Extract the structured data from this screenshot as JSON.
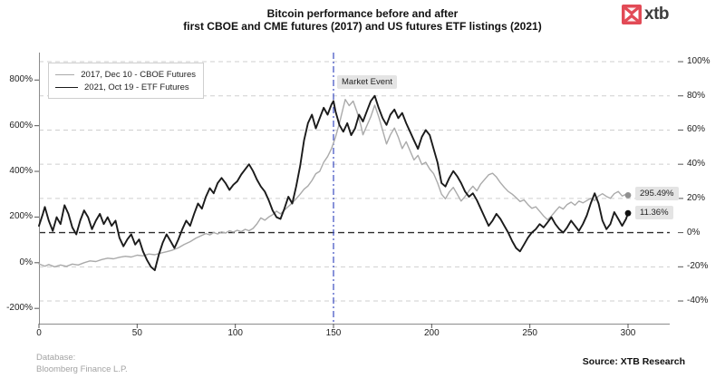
{
  "header": {
    "title_line1": "Bitcoin performance before and after",
    "title_line2": "first CBOE and CME futures (2017) and US futures ETF listings (2021)",
    "logo_text": "xtb",
    "logo_color": "#e24a56"
  },
  "footer": {
    "database_label": "Database:",
    "database_value": "Bloomberg Finance L.P.",
    "source": "Source: XTB Research"
  },
  "chart_data": {
    "type": "line",
    "title": "Bitcoin performance before and after first CBOE and CME futures (2017) and US futures ETF listings (2021)",
    "legend_position": "top-left",
    "grid": true,
    "x_axis": {
      "range": [
        0,
        300
      ],
      "ticks": [
        {
          "value": 0,
          "label": "0"
        },
        {
          "value": 50,
          "label": "50"
        },
        {
          "value": 100,
          "label": "100"
        },
        {
          "value": 150,
          "label": "150"
        },
        {
          "value": 200,
          "label": "200"
        },
        {
          "value": 250,
          "label": "250"
        },
        {
          "value": 300,
          "label": "300"
        }
      ]
    },
    "left_axis": {
      "range": [
        -300,
        900
      ],
      "ticks": [
        {
          "value": 800,
          "label": "800%"
        },
        {
          "value": 600,
          "label": "600%"
        },
        {
          "value": 400,
          "label": "400%"
        },
        {
          "value": 200,
          "label": "200%"
        },
        {
          "value": 0,
          "label": "0%"
        },
        {
          "value": -200,
          "label": "-200%"
        }
      ]
    },
    "right_axis": {
      "range": [
        -55,
        105
      ],
      "ticks": [
        {
          "value": 100,
          "label": "100%"
        },
        {
          "value": 80,
          "label": "80%"
        },
        {
          "value": 60,
          "label": "60%"
        },
        {
          "value": 40,
          "label": "40%"
        },
        {
          "value": 20,
          "label": "20%"
        },
        {
          "value": 0,
          "label": "0%"
        },
        {
          "value": -20,
          "label": "-20%"
        },
        {
          "value": -40,
          "label": "-40%"
        }
      ]
    },
    "zero_line": {
      "axis": "right",
      "value": 0,
      "color": "#2e2e2e"
    },
    "event_line": {
      "x": 150,
      "label": "Market Event",
      "color": "#3b4cc0"
    },
    "series": [
      {
        "name": "2017, Dec 10 - CBOE Futures",
        "axis": "left",
        "color": "#aaaaaa",
        "dot_color": "#909090",
        "width": 1.4,
        "end_label": "295.49%",
        "end_value": 295.49,
        "points": [
          [
            0,
            -5
          ],
          [
            3,
            -15
          ],
          [
            5,
            -8
          ],
          [
            8,
            -18
          ],
          [
            11,
            -10
          ],
          [
            14,
            -16
          ],
          [
            17,
            -6
          ],
          [
            20,
            -10
          ],
          [
            23,
            0
          ],
          [
            26,
            8
          ],
          [
            29,
            5
          ],
          [
            32,
            14
          ],
          [
            35,
            20
          ],
          [
            38,
            17
          ],
          [
            41,
            24
          ],
          [
            44,
            28
          ],
          [
            47,
            25
          ],
          [
            50,
            33
          ],
          [
            53,
            30
          ],
          [
            56,
            38
          ],
          [
            59,
            35
          ],
          [
            62,
            42
          ],
          [
            65,
            48
          ],
          [
            68,
            55
          ],
          [
            71,
            65
          ],
          [
            74,
            80
          ],
          [
            77,
            92
          ],
          [
            80,
            108
          ],
          [
            83,
            120
          ],
          [
            85,
            128
          ],
          [
            87,
            122
          ],
          [
            89,
            132
          ],
          [
            91,
            126
          ],
          [
            93,
            135
          ],
          [
            95,
            130
          ],
          [
            97,
            140
          ],
          [
            99,
            134
          ],
          [
            101,
            142
          ],
          [
            103,
            136
          ],
          [
            105,
            146
          ],
          [
            107,
            140
          ],
          [
            109,
            150
          ],
          [
            111,
            170
          ],
          [
            113,
            196
          ],
          [
            115,
            186
          ],
          [
            117,
            200
          ],
          [
            119,
            210
          ],
          [
            121,
            226
          ],
          [
            123,
            214
          ],
          [
            125,
            230
          ],
          [
            127,
            246
          ],
          [
            129,
            262
          ],
          [
            131,
            280
          ],
          [
            133,
            300
          ],
          [
            135,
            322
          ],
          [
            137,
            336
          ],
          [
            139,
            360
          ],
          [
            141,
            390
          ],
          [
            143,
            400
          ],
          [
            145,
            440
          ],
          [
            147,
            465
          ],
          [
            149,
            500
          ],
          [
            151,
            550
          ],
          [
            153,
            610
          ],
          [
            155,
            680
          ],
          [
            156,
            715
          ],
          [
            158,
            688
          ],
          [
            160,
            708
          ],
          [
            162,
            660
          ],
          [
            164,
            600
          ],
          [
            165,
            560
          ],
          [
            167,
            600
          ],
          [
            169,
            640
          ],
          [
            171,
            690
          ],
          [
            173,
            640
          ],
          [
            175,
            580
          ],
          [
            177,
            520
          ],
          [
            179,
            560
          ],
          [
            181,
            590
          ],
          [
            183,
            550
          ],
          [
            185,
            500
          ],
          [
            187,
            530
          ],
          [
            189,
            490
          ],
          [
            191,
            450
          ],
          [
            193,
            470
          ],
          [
            195,
            430
          ],
          [
            197,
            440
          ],
          [
            199,
            410
          ],
          [
            201,
            390
          ],
          [
            203,
            350
          ],
          [
            205,
            300
          ],
          [
            207,
            280
          ],
          [
            209,
            310
          ],
          [
            211,
            330
          ],
          [
            213,
            300
          ],
          [
            215,
            270
          ],
          [
            217,
            290
          ],
          [
            219,
            315
          ],
          [
            221,
            335
          ],
          [
            223,
            315
          ],
          [
            225,
            345
          ],
          [
            227,
            365
          ],
          [
            229,
            385
          ],
          [
            231,
            392
          ],
          [
            233,
            375
          ],
          [
            235,
            350
          ],
          [
            237,
            330
          ],
          [
            239,
            312
          ],
          [
            241,
            300
          ],
          [
            243,
            285
          ],
          [
            245,
            268
          ],
          [
            247,
            275
          ],
          [
            249,
            255
          ],
          [
            251,
            238
          ],
          [
            253,
            245
          ],
          [
            255,
            225
          ],
          [
            257,
            205
          ],
          [
            259,
            188
          ],
          [
            261,
            205
          ],
          [
            263,
            225
          ],
          [
            265,
            245
          ],
          [
            267,
            235
          ],
          [
            269,
            255
          ],
          [
            271,
            265
          ],
          [
            273,
            252
          ],
          [
            275,
            270
          ],
          [
            277,
            262
          ],
          [
            279,
            272
          ],
          [
            281,
            282
          ],
          [
            283,
            272
          ],
          [
            285,
            292
          ],
          [
            287,
            302
          ],
          [
            289,
            290
          ],
          [
            291,
            282
          ],
          [
            293,
            302
          ],
          [
            295,
            312
          ],
          [
            297,
            292
          ],
          [
            299,
            300
          ],
          [
            300,
            295.49
          ]
        ]
      },
      {
        "name": "2021, Oct 19 - ETF Futures",
        "axis": "right",
        "color": "#1b1b1b",
        "dot_color": "#111111",
        "width": 1.9,
        "end_label": "11.36%",
        "end_value": 11.36,
        "points": [
          [
            0,
            4
          ],
          [
            2,
            11
          ],
          [
            3,
            15
          ],
          [
            5,
            7
          ],
          [
            7,
            1
          ],
          [
            9,
            9
          ],
          [
            11,
            5
          ],
          [
            13,
            16
          ],
          [
            15,
            11
          ],
          [
            17,
            3
          ],
          [
            19,
            -1
          ],
          [
            21,
            7
          ],
          [
            23,
            13
          ],
          [
            25,
            9
          ],
          [
            27,
            2
          ],
          [
            29,
            7
          ],
          [
            31,
            11
          ],
          [
            33,
            5
          ],
          [
            35,
            9
          ],
          [
            37,
            4
          ],
          [
            39,
            7
          ],
          [
            41,
            -3
          ],
          [
            43,
            -8
          ],
          [
            45,
            -4
          ],
          [
            47,
            -1
          ],
          [
            49,
            -7
          ],
          [
            51,
            -4
          ],
          [
            53,
            -11
          ],
          [
            55,
            -16
          ],
          [
            57,
            -20
          ],
          [
            59,
            -22
          ],
          [
            61,
            -13
          ],
          [
            63,
            -6
          ],
          [
            65,
            -1
          ],
          [
            67,
            -5
          ],
          [
            69,
            -9
          ],
          [
            71,
            -4
          ],
          [
            73,
            2
          ],
          [
            75,
            7
          ],
          [
            77,
            4
          ],
          [
            79,
            11
          ],
          [
            81,
            17
          ],
          [
            83,
            14
          ],
          [
            85,
            21
          ],
          [
            87,
            26
          ],
          [
            89,
            23
          ],
          [
            91,
            29
          ],
          [
            93,
            32
          ],
          [
            95,
            29
          ],
          [
            97,
            25
          ],
          [
            99,
            28
          ],
          [
            101,
            30
          ],
          [
            103,
            34
          ],
          [
            105,
            37
          ],
          [
            107,
            40
          ],
          [
            109,
            36
          ],
          [
            111,
            31
          ],
          [
            113,
            27
          ],
          [
            115,
            24
          ],
          [
            117,
            19
          ],
          [
            119,
            13
          ],
          [
            121,
            9
          ],
          [
            123,
            8
          ],
          [
            125,
            14
          ],
          [
            127,
            21
          ],
          [
            129,
            17
          ],
          [
            131,
            27
          ],
          [
            133,
            39
          ],
          [
            135,
            54
          ],
          [
            137,
            64
          ],
          [
            139,
            69
          ],
          [
            141,
            61
          ],
          [
            143,
            67
          ],
          [
            145,
            73
          ],
          [
            147,
            69
          ],
          [
            149,
            75
          ],
          [
            150,
            77
          ],
          [
            151,
            71
          ],
          [
            153,
            63
          ],
          [
            155,
            59
          ],
          [
            157,
            64
          ],
          [
            159,
            57
          ],
          [
            161,
            61
          ],
          [
            163,
            69
          ],
          [
            165,
            65
          ],
          [
            167,
            71
          ],
          [
            169,
            77
          ],
          [
            171,
            80
          ],
          [
            173,
            73
          ],
          [
            175,
            67
          ],
          [
            177,
            63
          ],
          [
            179,
            69
          ],
          [
            181,
            72
          ],
          [
            183,
            67
          ],
          [
            185,
            70
          ],
          [
            187,
            64
          ],
          [
            189,
            59
          ],
          [
            191,
            54
          ],
          [
            193,
            49
          ],
          [
            195,
            56
          ],
          [
            197,
            60
          ],
          [
            199,
            57
          ],
          [
            201,
            49
          ],
          [
            203,
            41
          ],
          [
            205,
            29
          ],
          [
            207,
            27
          ],
          [
            209,
            32
          ],
          [
            211,
            36
          ],
          [
            213,
            33
          ],
          [
            215,
            29
          ],
          [
            217,
            24
          ],
          [
            219,
            21
          ],
          [
            221,
            23
          ],
          [
            223,
            19
          ],
          [
            225,
            14
          ],
          [
            227,
            9
          ],
          [
            229,
            4
          ],
          [
            231,
            7
          ],
          [
            233,
            11
          ],
          [
            235,
            8
          ],
          [
            237,
            4
          ],
          [
            239,
            0
          ],
          [
            241,
            -5
          ],
          [
            243,
            -9
          ],
          [
            245,
            -11
          ],
          [
            247,
            -7
          ],
          [
            249,
            -3
          ],
          [
            251,
            0
          ],
          [
            253,
            2
          ],
          [
            255,
            5
          ],
          [
            257,
            3
          ],
          [
            259,
            6
          ],
          [
            261,
            9
          ],
          [
            263,
            5
          ],
          [
            265,
            2
          ],
          [
            267,
            0
          ],
          [
            269,
            3
          ],
          [
            271,
            7
          ],
          [
            273,
            4
          ],
          [
            275,
            1
          ],
          [
            277,
            5
          ],
          [
            279,
            10
          ],
          [
            281,
            17
          ],
          [
            283,
            23
          ],
          [
            285,
            17
          ],
          [
            287,
            7
          ],
          [
            289,
            2
          ],
          [
            291,
            5
          ],
          [
            293,
            12
          ],
          [
            295,
            8
          ],
          [
            297,
            4
          ],
          [
            299,
            8
          ],
          [
            300,
            11.36
          ]
        ]
      }
    ]
  }
}
